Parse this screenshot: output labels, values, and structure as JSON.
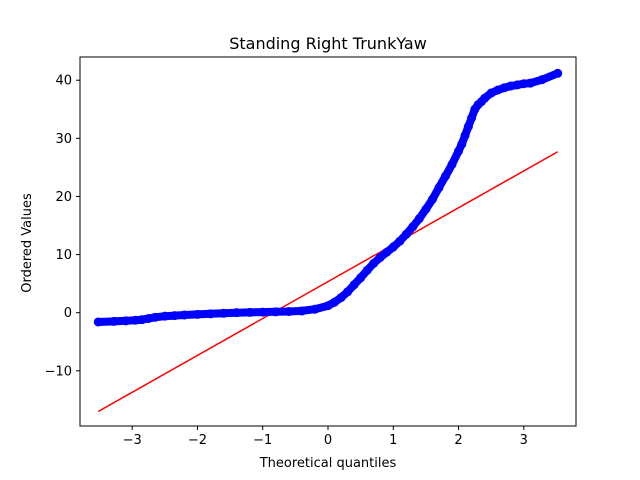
{
  "chart_data": {
    "type": "scatter",
    "title": "Standing Right TrunkYaw",
    "xlabel": "Theoretical quantiles",
    "ylabel": "Ordered Values",
    "xlim": [
      -3.8,
      3.8
    ],
    "ylim": [
      -19.5,
      44
    ],
    "xticks": [
      -3,
      -2,
      -1,
      0,
      1,
      2,
      3
    ],
    "xtick_labels": [
      "−3",
      "−2",
      "−1",
      "0",
      "1",
      "2",
      "3"
    ],
    "yticks": [
      -10,
      0,
      10,
      20,
      30,
      40
    ],
    "ytick_labels": [
      "−10",
      "0",
      "10",
      "20",
      "30",
      "40"
    ],
    "grid": false,
    "legend": "none",
    "series": [
      {
        "kind": "points",
        "color": "#0000ff",
        "x": [
          -3.52,
          -3.28,
          -3.1,
          -2.95,
          -2.85,
          -2.75,
          -2.65,
          -2.5,
          -2.35,
          -2.2,
          -2.0,
          -1.8,
          -1.6,
          -1.4,
          -1.2,
          -1.0,
          -0.8,
          -0.6,
          -0.4,
          -0.2,
          0.0,
          0.1,
          0.2,
          0.3,
          0.4,
          0.5,
          0.6,
          0.7,
          0.8,
          0.9,
          1.0,
          1.1,
          1.2,
          1.3,
          1.4,
          1.5,
          1.6,
          1.7,
          1.8,
          1.9,
          2.0,
          2.05,
          2.1,
          2.15,
          2.2,
          2.25,
          2.3,
          2.35,
          2.4,
          2.5,
          2.6,
          2.7,
          2.8,
          2.9,
          3.0,
          3.1,
          3.28,
          3.52
        ],
        "y": [
          -1.6,
          -1.5,
          -1.4,
          -1.3,
          -1.2,
          -1.0,
          -0.8,
          -0.6,
          -0.5,
          -0.4,
          -0.3,
          -0.2,
          -0.1,
          0.0,
          0.05,
          0.1,
          0.15,
          0.2,
          0.3,
          0.6,
          1.2,
          1.8,
          2.6,
          3.6,
          4.8,
          6.0,
          7.3,
          8.5,
          9.5,
          10.4,
          11.3,
          12.3,
          13.5,
          14.8,
          16.2,
          17.8,
          19.5,
          21.5,
          23.5,
          25.5,
          27.8,
          29.0,
          30.5,
          32.0,
          33.5,
          35.0,
          35.8,
          36.3,
          36.9,
          37.8,
          38.3,
          38.7,
          39.0,
          39.2,
          39.4,
          39.5,
          40.1,
          41.2
        ]
      },
      {
        "kind": "fit-line",
        "color": "#ff0000",
        "x": [
          -3.52,
          3.52
        ],
        "y": [
          -17.0,
          27.7
        ]
      }
    ]
  }
}
